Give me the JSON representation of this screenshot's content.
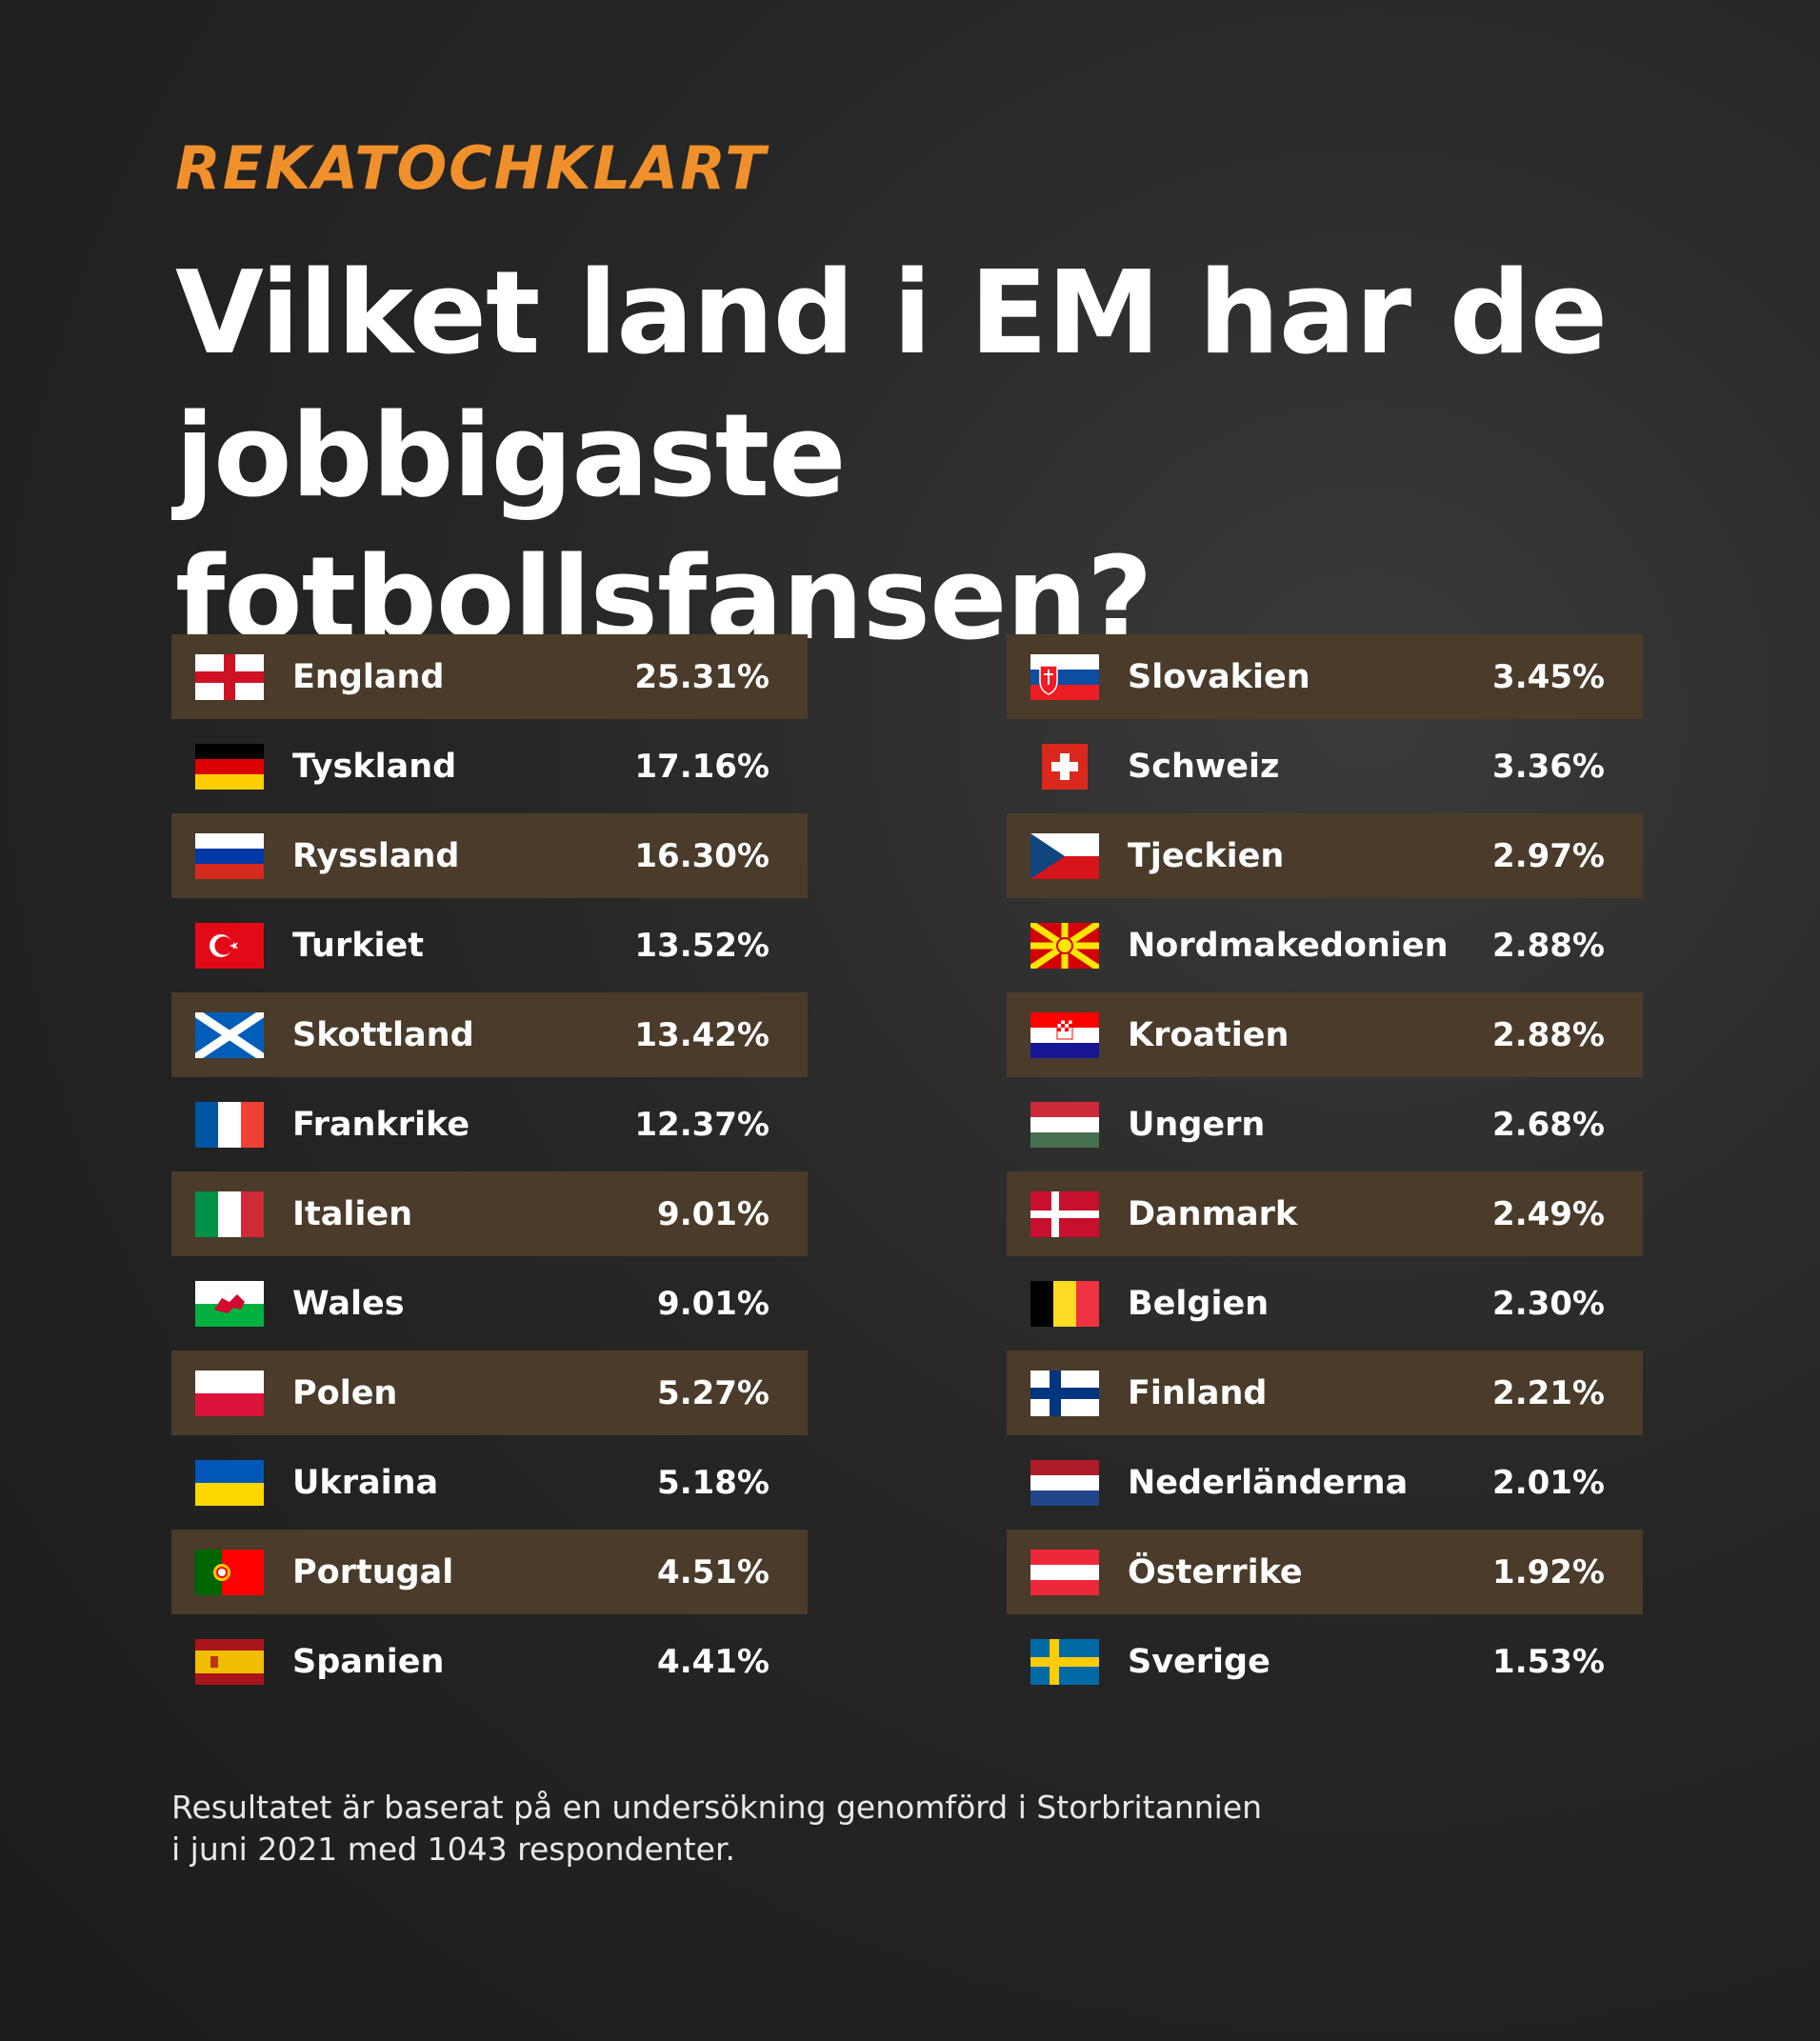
{
  "brand": "REKATOCHKLART",
  "title": {
    "line1": "Vilket land i EM har de",
    "line2": "jobbigaste fotbollsfansen?"
  },
  "colors": {
    "accent": "#f0902b",
    "row_shaded": "#4a3b2b",
    "background": "#262626"
  },
  "left_column": [
    {
      "country": "England",
      "value": "25.31%",
      "flag_icon": "england-flag-icon"
    },
    {
      "country": "Tyskland",
      "value": "17.16%",
      "flag_icon": "germany-flag-icon"
    },
    {
      "country": "Ryssland",
      "value": "16.30%",
      "flag_icon": "russia-flag-icon"
    },
    {
      "country": "Turkiet",
      "value": "13.52%",
      "flag_icon": "turkey-flag-icon"
    },
    {
      "country": "Skottland",
      "value": "13.42%",
      "flag_icon": "scotland-flag-icon"
    },
    {
      "country": "Frankrike",
      "value": "12.37%",
      "flag_icon": "france-flag-icon"
    },
    {
      "country": "Italien",
      "value": "9.01%",
      "flag_icon": "italy-flag-icon"
    },
    {
      "country": "Wales",
      "value": "9.01%",
      "flag_icon": "wales-flag-icon"
    },
    {
      "country": "Polen",
      "value": "5.27%",
      "flag_icon": "poland-flag-icon"
    },
    {
      "country": "Ukraina",
      "value": "5.18%",
      "flag_icon": "ukraine-flag-icon"
    },
    {
      "country": "Portugal",
      "value": "4.51%",
      "flag_icon": "portugal-flag-icon"
    },
    {
      "country": "Spanien",
      "value": "4.41%",
      "flag_icon": "spain-flag-icon"
    }
  ],
  "right_column": [
    {
      "country": "Slovakien",
      "value": "3.45%",
      "flag_icon": "slovakia-flag-icon"
    },
    {
      "country": "Schweiz",
      "value": "3.36%",
      "flag_icon": "switzerland-flag-icon"
    },
    {
      "country": "Tjeckien",
      "value": "2.97%",
      "flag_icon": "czechia-flag-icon"
    },
    {
      "country": "Nordmakedonien",
      "value": "2.88%",
      "flag_icon": "north-macedonia-flag-icon"
    },
    {
      "country": "Kroatien",
      "value": "2.88%",
      "flag_icon": "croatia-flag-icon"
    },
    {
      "country": "Ungern",
      "value": "2.68%",
      "flag_icon": "hungary-flag-icon"
    },
    {
      "country": "Danmark",
      "value": "2.49%",
      "flag_icon": "denmark-flag-icon"
    },
    {
      "country": "Belgien",
      "value": "2.30%",
      "flag_icon": "belgium-flag-icon"
    },
    {
      "country": "Finland",
      "value": "2.21%",
      "flag_icon": "finland-flag-icon"
    },
    {
      "country": "Nederländerna",
      "value": "2.01%",
      "flag_icon": "netherlands-flag-icon"
    },
    {
      "country": "Österrike",
      "value": "1.92%",
      "flag_icon": "austria-flag-icon"
    },
    {
      "country": "Sverige",
      "value": "1.53%",
      "flag_icon": "sweden-flag-icon"
    }
  ],
  "footnote": {
    "line1": "Resultatet är baserat på en undersökning genomförd i Storbritannien",
    "line2": "i juni 2021 med 1043 respondenter."
  }
}
